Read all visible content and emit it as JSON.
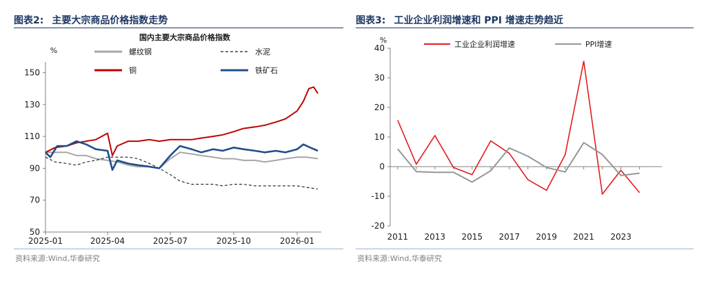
{
  "left_panel": {
    "number": "图表2:",
    "title": "主要大宗商品价格指数走势",
    "source": "资料来源:Wind,华泰研究"
  },
  "right_panel": {
    "number": "图表3:",
    "title": "工业企业利润增速和 PPI 增速走势趋近",
    "source": "资料来源:Wind,华泰研究"
  },
  "chart_data": [
    {
      "type": "line",
      "title": "国内主要大宗商品价格指数",
      "ylabel": "%",
      "ylim": [
        50,
        155
      ],
      "yticks": [
        50,
        70,
        90,
        110,
        130,
        150
      ],
      "xticks": [
        "2025-01",
        "2025-04",
        "2025-07",
        "2025-10",
        "2026-01"
      ],
      "xlim": [
        "2025-01-01",
        "2026-02-05"
      ],
      "grid": false,
      "legend_position": "top",
      "series": [
        {
          "name": "螺纹钢",
          "color": "#a6a6a6",
          "dash": "solid",
          "x": [
            "2025-01-01",
            "2025-01-08",
            "2025-01-18",
            "2025-02-01",
            "2025-02-15",
            "2025-03-01",
            "2025-03-15",
            "2025-04-01",
            "2025-04-15",
            "2025-05-01",
            "2025-05-15",
            "2025-06-01",
            "2025-06-15",
            "2025-07-01",
            "2025-07-15",
            "2025-08-01",
            "2025-08-15",
            "2025-09-01",
            "2025-09-15",
            "2025-10-01",
            "2025-10-15",
            "2025-11-01",
            "2025-11-15",
            "2025-12-01",
            "2025-12-15",
            "2026-01-01",
            "2026-01-15",
            "2026-01-31"
          ],
          "y": [
            100,
            100,
            100,
            100,
            98,
            98,
            96,
            95,
            94,
            92,
            91,
            91,
            90,
            96,
            100,
            99,
            98,
            97,
            96,
            96,
            95,
            95,
            94,
            95,
            96,
            97,
            97,
            96
          ]
        },
        {
          "name": "水泥",
          "color": "#1a1a1a",
          "dash": "dashed",
          "x": [
            "2025-01-01",
            "2025-01-15",
            "2025-02-01",
            "2025-02-15",
            "2025-03-01",
            "2025-03-15",
            "2025-04-01",
            "2025-04-15",
            "2025-05-01",
            "2025-05-15",
            "2025-06-01",
            "2025-06-15",
            "2025-07-01",
            "2025-07-15",
            "2025-08-01",
            "2025-08-15",
            "2025-09-01",
            "2025-09-15",
            "2025-10-01",
            "2025-10-15",
            "2025-11-01",
            "2025-11-15",
            "2025-12-01",
            "2025-12-15",
            "2026-01-01",
            "2026-01-15",
            "2026-01-31"
          ],
          "y": [
            97,
            94,
            93,
            92,
            94,
            95,
            97,
            97,
            97,
            96,
            93,
            90,
            86,
            82,
            80,
            80,
            80,
            79,
            80,
            80,
            79,
            79,
            79,
            79,
            79,
            78,
            77
          ]
        },
        {
          "name": "铜",
          "color": "#c00000",
          "dash": "solid",
          "x": [
            "2025-01-01",
            "2025-01-15",
            "2025-02-01",
            "2025-02-15",
            "2025-03-01",
            "2025-03-15",
            "2025-04-01",
            "2025-04-08",
            "2025-04-15",
            "2025-05-01",
            "2025-05-15",
            "2025-06-01",
            "2025-06-15",
            "2025-07-01",
            "2025-07-15",
            "2025-08-01",
            "2025-08-15",
            "2025-09-01",
            "2025-09-15",
            "2025-10-01",
            "2025-10-15",
            "2025-11-01",
            "2025-11-15",
            "2025-12-01",
            "2025-12-15",
            "2026-01-01",
            "2026-01-10",
            "2026-01-18",
            "2026-01-25",
            "2026-01-31"
          ],
          "y": [
            100,
            103,
            104,
            106,
            107,
            108,
            112,
            98,
            104,
            107,
            107,
            108,
            107,
            108,
            108,
            108,
            109,
            110,
            111,
            113,
            115,
            116,
            117,
            119,
            121,
            126,
            132,
            140,
            141,
            137
          ]
        },
        {
          "name": "铁矿石",
          "color": "#1f4e8c",
          "dash": "solid",
          "x": [
            "2025-01-01",
            "2025-01-08",
            "2025-01-18",
            "2025-02-01",
            "2025-02-15",
            "2025-03-01",
            "2025-03-15",
            "2025-04-01",
            "2025-04-08",
            "2025-04-15",
            "2025-05-01",
            "2025-05-15",
            "2025-06-01",
            "2025-06-15",
            "2025-07-01",
            "2025-07-15",
            "2025-08-01",
            "2025-08-15",
            "2025-09-01",
            "2025-09-15",
            "2025-10-01",
            "2025-10-15",
            "2025-11-01",
            "2025-11-15",
            "2025-12-01",
            "2025-12-15",
            "2026-01-01",
            "2026-01-10",
            "2026-01-20",
            "2026-01-31"
          ],
          "y": [
            100,
            97,
            104,
            104,
            107,
            105,
            102,
            101,
            89,
            95,
            93,
            92,
            91,
            90,
            98,
            104,
            102,
            100,
            102,
            101,
            103,
            102,
            101,
            100,
            101,
            100,
            102,
            105,
            103,
            101
          ]
        }
      ]
    },
    {
      "type": "line",
      "ylabel": "%",
      "ylim": [
        -20,
        40
      ],
      "yticks": [
        -20,
        -10,
        0,
        10,
        20,
        30,
        40
      ],
      "xticks": [
        "2011",
        "2013",
        "2015",
        "2017",
        "2019",
        "2021",
        "2023"
      ],
      "xlim": [
        2010.6,
        2025.2
      ],
      "grid": false,
      "legend_position": "top",
      "series": [
        {
          "name": "工业企业利润增速",
          "color": "#e31a1c",
          "x": [
            2011,
            2012,
            2013,
            2014,
            2015,
            2016,
            2017,
            2018,
            2019,
            2020,
            2021,
            2022,
            2023,
            2024
          ],
          "y": [
            15.7,
            0.8,
            10.5,
            -0.3,
            -2.7,
            8.7,
            4.5,
            -4.4,
            -8,
            4,
            35.6,
            -9.3,
            -1.2,
            -8.8
          ]
        },
        {
          "name": "PPI增速",
          "color": "#969696",
          "x": [
            2011,
            2012,
            2013,
            2014,
            2015,
            2016,
            2017,
            2018,
            2019,
            2020,
            2021,
            2022,
            2023,
            2024
          ],
          "y": [
            6,
            -1.7,
            -1.9,
            -1.9,
            -5.2,
            -1.4,
            6.3,
            3.5,
            -0.3,
            -1.8,
            8.1,
            4.1,
            -3,
            -2.2
          ]
        }
      ]
    }
  ]
}
